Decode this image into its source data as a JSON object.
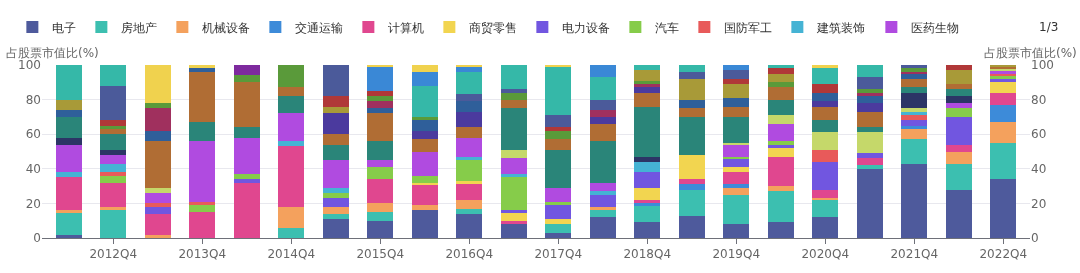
{
  "chart_data": {
    "type": "bar",
    "stacked": true,
    "ylabel": "占股票市值比(%)",
    "y2label": "占股票市值比(%)",
    "categories": [
      null,
      "2012Q4",
      null,
      "2013Q4",
      null,
      "2014Q4",
      null,
      "2015Q4",
      null,
      "2016Q4",
      null,
      "2017Q4",
      null,
      "2018Q4",
      null,
      "2019Q4",
      null,
      "2020Q4",
      null,
      "2021Q4",
      null,
      "2022Q4"
    ],
    "ylim": [
      0,
      100
    ],
    "yticks": [
      0,
      20,
      40,
      60,
      80,
      100
    ],
    "y2lim": [
      0,
      100
    ],
    "y2ticks": [
      0,
      20,
      40,
      60,
      80,
      100
    ],
    "grid": "y",
    "legend": "top",
    "annotations": [
      "1/3"
    ],
    "series": [
      {
        "name": "电子",
        "color": "#4e5a9c",
        "values": [
          2,
          null,
          null,
          null,
          null,
          null,
          11,
          10,
          16,
          14,
          8,
          3,
          12,
          9,
          13,
          8,
          9,
          12,
          40,
          43,
          28,
          34
        ]
      },
      {
        "name": "房地产",
        "color": "#3cbfb0",
        "values": [
          13,
          16,
          null,
          null,
          null,
          6,
          3,
          5,
          null,
          3,
          null,
          5,
          4,
          10,
          15,
          17,
          18,
          10,
          2,
          14,
          15,
          21
        ]
      },
      {
        "name": "机械设备",
        "color": "#f4a15d",
        "values": [
          1,
          2,
          2,
          null,
          null,
          12,
          4,
          5,
          3,
          5,
          null,
          null,
          2,
          null,
          null,
          4,
          3,
          1,
          null,
          6,
          7,
          12
        ]
      },
      {
        "name": "交通运输",
        "color": "#3d8bd9",
        "values": [
          null,
          null,
          null,
          null,
          null,
          null,
          null,
          null,
          null,
          null,
          null,
          null,
          null,
          1,
          3,
          2,
          null,
          null,
          null,
          2,
          null,
          10
        ]
      },
      {
        "name": "计算机",
        "color": "#e0478f",
        "values": [
          19,
          14,
          12,
          15,
          32,
          35,
          null,
          14,
          12,
          9,
          2,
          null,
          null,
          2,
          3,
          7,
          17,
          5,
          4,
          null,
          4,
          7
        ]
      },
      {
        "name": "商贸零售",
        "color": "#f2d550",
        "values": [
          null,
          null,
          null,
          null,
          null,
          null,
          null,
          null,
          1,
          2,
          5,
          3,
          null,
          7,
          14,
          3,
          5,
          null,
          null,
          null,
          null,
          6
        ]
      },
      {
        "name": "电力设备",
        "color": "#7156e0",
        "values": [
          null,
          null,
          4,
          null,
          2,
          null,
          5,
          null,
          null,
          null,
          1,
          8,
          7,
          9,
          null,
          5,
          2,
          16,
          3,
          3,
          16,
          2
        ]
      },
      {
        "name": "汽车",
        "color": "#86cc4a",
        "values": [
          null,
          4,
          null,
          4,
          3,
          null,
          3,
          7,
          4,
          12,
          19,
          2,
          null,
          null,
          null,
          1,
          2,
          null,
          null,
          null,
          5,
          2
        ]
      },
      {
        "name": "国防军工",
        "color": "#e85a5a",
        "values": [
          null,
          2,
          2,
          2,
          null,
          null,
          null,
          null,
          null,
          null,
          null,
          null,
          null,
          null,
          null,
          null,
          null,
          7,
          null,
          3,
          null,
          1
        ]
      },
      {
        "name": "建筑装饰",
        "color": "#45b3d4",
        "values": [
          3,
          5,
          null,
          null,
          null,
          3,
          3,
          null,
          null,
          2,
          2,
          null,
          2,
          6,
          null,
          null,
          null,
          null,
          null,
          2,
          null,
          null
        ]
      },
      {
        "name": "医药生物",
        "color": "#b04be0",
        "values": [
          16,
          5,
          6,
          35,
          21,
          16,
          16,
          4,
          14,
          11,
          9,
          8,
          5,
          null,
          null,
          7,
          10,
          null,
          null,
          null,
          3,
          2
        ]
      },
      {
        "color": "#c5d86a",
        "values": [
          null,
          null,
          3,
          null,
          null,
          null,
          null,
          null,
          null,
          null,
          5,
          null,
          null,
          null,
          null,
          1,
          5,
          10,
          12,
          2,
          null,
          1
        ]
      },
      {
        "color": "#2c3566",
        "values": [
          4,
          3,
          null,
          null,
          null,
          null,
          null,
          null,
          null,
          null,
          null,
          null,
          null,
          3,
          null,
          null,
          null,
          null,
          null,
          9,
          4,
          null
        ]
      },
      {
        "color": "#2a8579",
        "values": [
          12,
          9,
          null,
          11,
          6,
          10,
          9,
          11,
          null,
          null,
          24,
          22,
          24,
          29,
          22,
          15,
          9,
          7,
          3,
          3,
          4,
          null
        ]
      },
      {
        "color": "#b06d34",
        "values": [
          null,
          3,
          27,
          29,
          26,
          5,
          6,
          16,
          7,
          6,
          5,
          6,
          10,
          8,
          5,
          6,
          7,
          8,
          9,
          5,
          3,
          1
        ]
      },
      {
        "color": "#4b3a9e",
        "values": [
          null,
          null,
          null,
          null,
          null,
          null,
          12,
          null,
          5,
          9,
          null,
          null,
          4,
          3,
          null,
          null,
          null,
          3,
          5,
          null,
          null,
          null
        ]
      },
      {
        "color": "#2f5f9a",
        "values": [
          4,
          null,
          6,
          2,
          null,
          null,
          null,
          3,
          6,
          6,
          null,
          null,
          null,
          null,
          5,
          5,
          null,
          5,
          4,
          3,
          null,
          null
        ]
      },
      {
        "color": "#a0305e",
        "values": [
          null,
          null,
          13,
          null,
          null,
          null,
          null,
          4,
          null,
          null,
          null,
          null,
          4,
          2,
          null,
          null,
          null,
          null,
          2,
          1,
          null,
          null
        ]
      },
      {
        "color": "#5a9a3a",
        "values": [
          null,
          2,
          3,
          null,
          4,
          13,
          null,
          3,
          2,
          null,
          4,
          5,
          null,
          2,
          null,
          null,
          3,
          null,
          2,
          2,
          null,
          null
        ]
      },
      {
        "color": "#a89a38",
        "values": [
          6,
          null,
          null,
          null,
          null,
          null,
          4,
          null,
          null,
          null,
          null,
          null,
          null,
          6,
          12,
          8,
          5,
          null,
          null,
          null,
          8,
          1
        ]
      },
      {
        "color": "#b03838",
        "values": [
          null,
          3,
          null,
          null,
          null,
          null,
          6,
          3,
          null,
          null,
          null,
          2,
          null,
          null,
          null,
          3,
          3,
          5,
          null,
          null,
          3,
          null
        ]
      },
      {
        "color": "#4b5a9a",
        "values": [
          null,
          20,
          null,
          null,
          null,
          null,
          18,
          null,
          null,
          4,
          2,
          7,
          6,
          null,
          4,
          5,
          null,
          null,
          7,
          2,
          null,
          null
        ]
      },
      {
        "color": "#35b8a8",
        "values": [
          20,
          12,
          null,
          null,
          null,
          null,
          null,
          null,
          18,
          13,
          14,
          28,
          13,
          3,
          4,
          null,
          2,
          9,
          7,
          null,
          null,
          null
        ]
      },
      {
        "color": "#3a88d6",
        "values": [
          null,
          null,
          null,
          null,
          null,
          null,
          null,
          14,
          8,
          3,
          null,
          null,
          7,
          null,
          null,
          3,
          null,
          null,
          null,
          null,
          null,
          null
        ]
      },
      {
        "color": "#f0d24e",
        "values": [
          null,
          null,
          22,
          2,
          null,
          null,
          null,
          1,
          4,
          1,
          null,
          1,
          null,
          null,
          null,
          null,
          null,
          2,
          null,
          null,
          null,
          null
        ]
      },
      {
        "color": "#7e2a9e",
        "values": [
          null,
          null,
          null,
          null,
          6,
          null,
          null,
          null,
          null,
          null,
          null,
          null,
          null,
          null,
          null,
          null,
          null,
          null,
          null,
          null,
          null,
          null
        ]
      }
    ]
  }
}
